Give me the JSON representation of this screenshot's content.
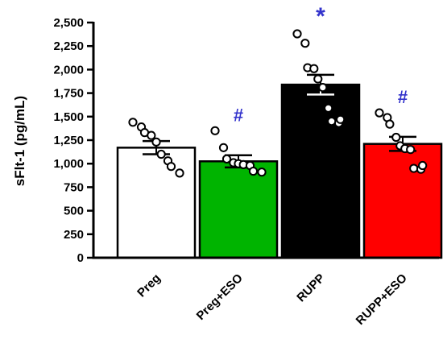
{
  "chart_data": {
    "type": "bar",
    "title": "",
    "xlabel": "",
    "ylabel": "sFlt-1 (pg/mL)",
    "ylim": [
      0,
      2500
    ],
    "yticks": [
      0,
      250,
      500,
      750,
      1000,
      1250,
      1500,
      1750,
      2000,
      2250,
      2500
    ],
    "ytick_labels": [
      "0",
      "250",
      "500",
      "750",
      "1,000",
      "1,250",
      "1,500",
      "1,750",
      "2,000",
      "2,250",
      "2,500"
    ],
    "grid": false,
    "legend": "none",
    "categories": [
      "Preg",
      "Preg+ESO",
      "RUPP",
      "RUPP+ESO"
    ],
    "values": [
      1170,
      1025,
      1840,
      1210
    ],
    "sem": [
      70,
      65,
      105,
      75
    ],
    "colors": [
      "#ffffff",
      "#00b400",
      "#000000",
      "#ff0000"
    ],
    "annotations": [
      "",
      "#",
      "*",
      "#"
    ],
    "points": [
      [
        1440,
        1390,
        1330,
        1300,
        1230,
        1100,
        1030,
        970,
        900
      ],
      [
        1350,
        1170,
        1050,
        1010,
        1000,
        990,
        980,
        920,
        910
      ],
      [
        2380,
        2280,
        2020,
        2010,
        1900,
        1810,
        1590,
        1450,
        1430,
        1470
      ],
      [
        1540,
        1490,
        1420,
        1280,
        1190,
        1160,
        1150,
        950,
        940,
        980
      ]
    ]
  }
}
